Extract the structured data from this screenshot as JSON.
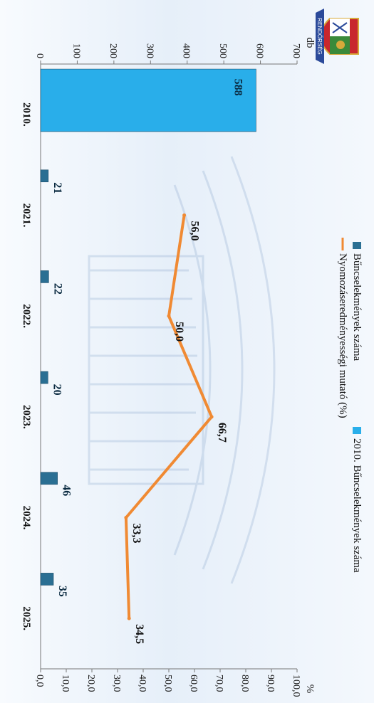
{
  "chart_data": {
    "type": "bar",
    "categories": [
      "2010.",
      "2021.",
      "2022.",
      "2023.",
      "2024.",
      "2025."
    ],
    "series": [
      {
        "name": "Bűncselekmények száma",
        "kind": "bar",
        "axis": "left",
        "values": [
          null,
          21,
          22,
          20,
          46,
          35
        ],
        "color": "#2a6f93"
      },
      {
        "name": "2010. Bűncselekmények száma",
        "kind": "bar",
        "axis": "left",
        "values": [
          588,
          null,
          null,
          null,
          null,
          null
        ],
        "color": "#29aeea"
      },
      {
        "name": "Nyomozáseredményességi mutató (%)",
        "kind": "line",
        "axis": "right",
        "values": [
          null,
          56.0,
          50.0,
          66.7,
          33.3,
          34.5
        ],
        "labels": [
          "",
          "56,0",
          "50,0",
          "66,7",
          "33,3",
          "34,5"
        ],
        "color": "#f08a33"
      }
    ],
    "bar_labels": [
      "588",
      "21",
      "22",
      "20",
      "46",
      "35"
    ],
    "left_axis": {
      "unit": "db",
      "ylim": [
        0,
        700
      ],
      "ticks": [
        "0",
        "100",
        "200",
        "300",
        "400",
        "500",
        "600",
        "700"
      ]
    },
    "right_axis": {
      "unit": "%",
      "ylim": [
        0,
        100
      ],
      "ticks": [
        "0,0",
        "10,0",
        "20,0",
        "30,0",
        "40,0",
        "50,0",
        "60,0",
        "70,0",
        "80,0",
        "90,0",
        "100,0"
      ]
    },
    "legend_placement": "top",
    "grid": false,
    "orientation": "rotated-90"
  },
  "colors": {
    "bar_dark": "#2a6f93",
    "bar_light": "#29aeea",
    "line": "#f08a33",
    "emblem_red": "#c8272e",
    "emblem_green": "#3a8a3a",
    "emblem_blue": "#2b4a9a"
  },
  "emblem": {
    "icon": "police-emblem-icon",
    "text": "RENDŐRSÉG"
  }
}
